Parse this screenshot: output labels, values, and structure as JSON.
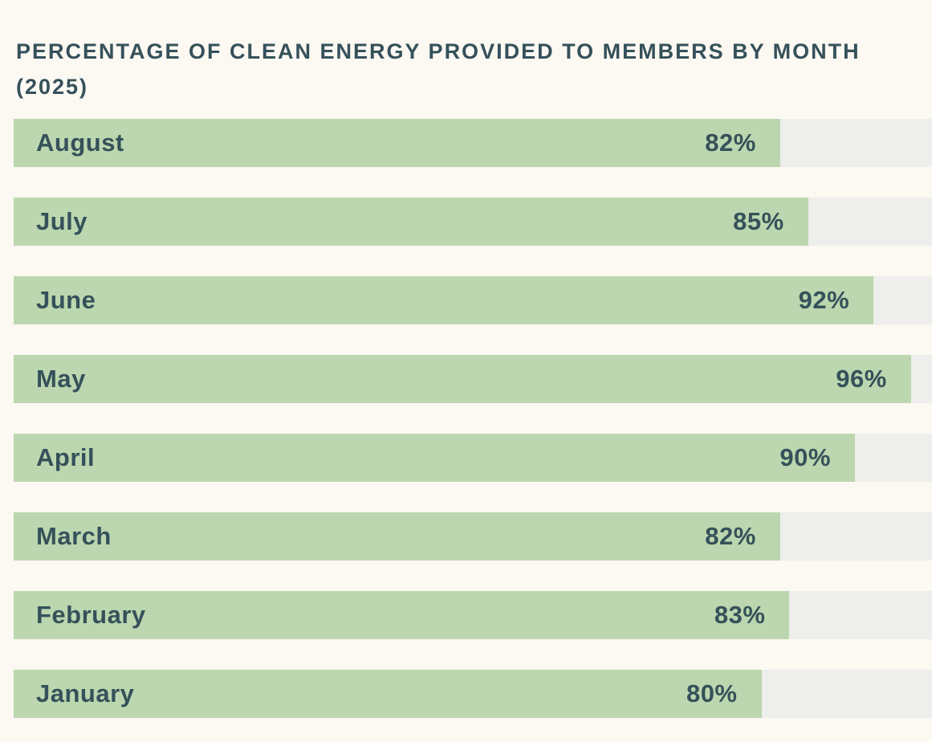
{
  "title": {
    "line1": "PERCENTAGE OF CLEAN ENERGY PROVIDED TO MEMBERS BY MONTH",
    "line2": "(2025)"
  },
  "colors": {
    "background": "#fcf8f2",
    "bar": "#bcd7af",
    "track": "#eeeeec",
    "text": "#35515a"
  },
  "chart_data": {
    "type": "bar",
    "orientation": "horizontal",
    "title": "PERCENTAGE OF CLEAN ENERGY PROVIDED TO MEMBERS BY MONTH (2025)",
    "categories": [
      "August",
      "July",
      "June",
      "May",
      "April",
      "March",
      "February",
      "January"
    ],
    "values": [
      82,
      85,
      92,
      96,
      90,
      82,
      83,
      80
    ],
    "value_labels": [
      "82%",
      "85%",
      "92%",
      "96%",
      "90%",
      "82%",
      "83%",
      "80%"
    ],
    "unit": "%",
    "xlabel": "",
    "ylabel": "",
    "xlim": [
      0,
      100
    ],
    "track_visible_max_percent": 98.25,
    "grid": false,
    "legend": false,
    "value_label_position": "inside-bar-right",
    "category_label_position": "inside-bar-left"
  }
}
